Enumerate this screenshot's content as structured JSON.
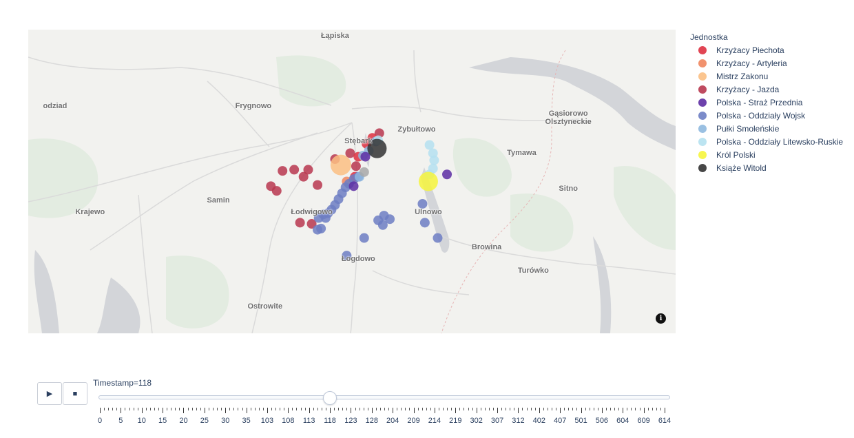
{
  "map": {
    "places": [
      {
        "name": "Łąpiska",
        "lon": 20.22,
        "lat": 53.72
      },
      {
        "name": "Gąsiorowo\nOlsztyneckie",
        "lon": 20.42,
        "lat": 53.65
      },
      {
        "name": "odziad",
        "lon": 19.98,
        "lat": 53.66
      },
      {
        "name": "Frygnowo",
        "lon": 20.15,
        "lat": 53.66
      },
      {
        "name": "Stębark",
        "lon": 20.24,
        "lat": 53.63
      },
      {
        "name": "Zybułtowo",
        "lon": 20.29,
        "lat": 53.64
      },
      {
        "name": "Tymawa",
        "lon": 20.38,
        "lat": 53.62
      },
      {
        "name": "Samin",
        "lon": 20.12,
        "lat": 53.58
      },
      {
        "name": "Krajewo",
        "lon": 20.01,
        "lat": 53.57
      },
      {
        "name": "Łodwigowo",
        "lon": 20.2,
        "lat": 53.57
      },
      {
        "name": "Ulnowo",
        "lon": 20.3,
        "lat": 53.57
      },
      {
        "name": "Sitno",
        "lon": 20.42,
        "lat": 53.59
      },
      {
        "name": "Łogdowo",
        "lon": 20.24,
        "lat": 53.53
      },
      {
        "name": "Browina",
        "lon": 20.35,
        "lat": 53.54
      },
      {
        "name": "Turówko",
        "lon": 20.39,
        "lat": 53.52
      },
      {
        "name": "Ostrowite",
        "lon": 20.16,
        "lat": 53.49
      }
    ],
    "info_icon": "info-icon"
  },
  "legend": {
    "title": "Jednostka",
    "items": [
      {
        "label": "Krzyżacy Piechota",
        "color": "#de3141"
      },
      {
        "label": "Krzyżacy - Artyleria",
        "color": "#f0865e"
      },
      {
        "label": "Mistrz Zakonu",
        "color": "#fbbf83"
      },
      {
        "label": "Krzyżacy - Jazda",
        "color": "#b8374f"
      },
      {
        "label": "Polska - Straż Przednia",
        "color": "#5d2ea3"
      },
      {
        "label": "Polska - Oddziały Wojsk",
        "color": "#6d7ec3"
      },
      {
        "label": "Pułki Smoleńskie",
        "color": "#8fb9df"
      },
      {
        "label": "Polska - Oddziały Litewsko-Ruskie",
        "color": "#b5e1f0"
      },
      {
        "label": "Król Polski",
        "color": "#f6f53c"
      },
      {
        "label": "Książe Witold",
        "color": "#333333"
      }
    ]
  },
  "units": [
    {
      "series": "Krzyżacy - Jazda",
      "lon": 20.175,
      "lat": 53.605
    },
    {
      "series": "Krzyżacy - Jazda",
      "lon": 20.185,
      "lat": 53.606
    },
    {
      "series": "Krzyżacy - Jazda",
      "lon": 20.197,
      "lat": 53.606
    },
    {
      "series": "Krzyżacy - Jazda",
      "lon": 20.193,
      "lat": 53.6
    },
    {
      "series": "Krzyżacy - Jazda",
      "lon": 20.165,
      "lat": 53.592
    },
    {
      "series": "Krzyżacy - Jazda",
      "lon": 20.17,
      "lat": 53.588
    },
    {
      "series": "Krzyżacy - Jazda",
      "lon": 20.205,
      "lat": 53.593
    },
    {
      "series": "Krzyżacy - Jazda",
      "lon": 20.233,
      "lat": 53.62
    },
    {
      "series": "Krzyżacy - Jazda",
      "lon": 20.22,
      "lat": 53.615
    },
    {
      "series": "Krzyżacy - Jazda",
      "lon": 20.19,
      "lat": 53.561
    },
    {
      "series": "Krzyżacy - Jazda",
      "lon": 20.2,
      "lat": 53.56
    },
    {
      "series": "Krzyżacy - Jazda",
      "lon": 20.238,
      "lat": 53.609
    },
    {
      "series": "Krzyżacy - Jazda",
      "lon": 20.258,
      "lat": 53.637
    },
    {
      "series": "Krzyżacy Piechota",
      "lon": 20.247,
      "lat": 53.628
    },
    {
      "series": "Krzyżacy Piechota",
      "lon": 20.252,
      "lat": 53.633
    },
    {
      "series": "Krzyżacy Piechota",
      "lon": 20.24,
      "lat": 53.617
    },
    {
      "series": "Krzyżacy Piechota",
      "lon": 20.237,
      "lat": 53.6
    },
    {
      "series": "Krzyżacy - Artyleria",
      "lon": 20.23,
      "lat": 53.596
    },
    {
      "series": "Mistrz Zakonu",
      "lon": 20.225,
      "lat": 53.61,
      "size": 30
    },
    {
      "series": "Polska - Oddziały Wojsk",
      "lon": 20.232,
      "lat": 53.594
    },
    {
      "series": "Polska - Oddziały Wojsk",
      "lon": 20.236,
      "lat": 53.598
    },
    {
      "series": "Polska - Oddziały Wojsk",
      "lon": 20.229,
      "lat": 53.591
    },
    {
      "series": "Polska - Oddziały Wojsk",
      "lon": 20.226,
      "lat": 53.586
    },
    {
      "series": "Polska - Oddziały Wojsk",
      "lon": 20.223,
      "lat": 53.581
    },
    {
      "series": "Polska - Oddziały Wojsk",
      "lon": 20.22,
      "lat": 53.576
    },
    {
      "series": "Polska - Oddziały Wojsk",
      "lon": 20.217,
      "lat": 53.572
    },
    {
      "series": "Polska - Oddziały Wojsk",
      "lon": 20.214,
      "lat": 53.569
    },
    {
      "series": "Polska - Oddziały Wojsk",
      "lon": 20.21,
      "lat": 53.568
    },
    {
      "series": "Polska - Oddziały Wojsk",
      "lon": 20.206,
      "lat": 53.565
    },
    {
      "series": "Polska - Oddziały Wojsk",
      "lon": 20.212,
      "lat": 53.565
    },
    {
      "series": "Polska - Oddziały Wojsk",
      "lon": 20.208,
      "lat": 53.556
    },
    {
      "series": "Polska - Oddziały Wojsk",
      "lon": 20.205,
      "lat": 53.555
    },
    {
      "series": "Polska - Oddziały Wojsk",
      "lon": 20.24,
      "lat": 53.6
    },
    {
      "series": "Polska - Oddziały Wojsk",
      "lon": 20.262,
      "lat": 53.567
    },
    {
      "series": "Polska - Oddziały Wojsk",
      "lon": 20.267,
      "lat": 53.564
    },
    {
      "series": "Polska - Oddziały Wojsk",
      "lon": 20.257,
      "lat": 53.563
    },
    {
      "series": "Polska - Oddziały Wojsk",
      "lon": 20.261,
      "lat": 53.559
    },
    {
      "series": "Polska - Oddziały Wojsk",
      "lon": 20.245,
      "lat": 53.548
    },
    {
      "series": "Polska - Oddziały Wojsk",
      "lon": 20.23,
      "lat": 53.533
    },
    {
      "series": "Polska - Oddziały Wojsk",
      "lon": 20.295,
      "lat": 53.577
    },
    {
      "series": "Polska - Oddziały Wojsk",
      "lon": 20.297,
      "lat": 53.561
    },
    {
      "series": "Polska - Oddziały Wojsk",
      "lon": 20.308,
      "lat": 53.548
    },
    {
      "series": "Pułki Smoleńskie",
      "lon": 20.255,
      "lat": 53.63
    },
    {
      "series": "Pułki Smoleńskie",
      "lon": 20.244,
      "lat": 53.618
    },
    {
      "series": "Pułki Smoleńskie",
      "lon": 20.249,
      "lat": 53.622
    },
    {
      "series": "Pułki Smoleńskie",
      "lon": 20.241,
      "lat": 53.6
    },
    {
      "series": "Polska - Oddziały Litewsko-Ruskie",
      "lon": 20.301,
      "lat": 53.627
    },
    {
      "series": "Polska - Oddziały Litewsko-Ruskie",
      "lon": 20.304,
      "lat": 53.62
    },
    {
      "series": "Polska - Oddziały Litewsko-Ruskie",
      "lon": 20.305,
      "lat": 53.614
    },
    {
      "series": "Polska - Oddziały Litewsko-Ruskie",
      "lon": 20.304,
      "lat": 53.607
    },
    {
      "series": "Polska - Oddziały Litewsko-Ruskie",
      "lon": 20.301,
      "lat": 53.602
    },
    {
      "series": "Polska - Oddziały Litewsko-Ruskie",
      "lon": 20.257,
      "lat": 53.631
    },
    {
      "series": "Polska - Straż Przednia",
      "lon": 20.316,
      "lat": 53.602
    },
    {
      "series": "Polska - Straż Przednia",
      "lon": 20.246,
      "lat": 53.617
    },
    {
      "series": "Polska - Straż Przednia",
      "lon": 20.236,
      "lat": 53.592
    },
    {
      "series": "Król Polski",
      "lon": 20.3,
      "lat": 53.596,
      "size": 28
    },
    {
      "series": "Książe Witold",
      "lon": 20.256,
      "lat": 53.624,
      "size": 28
    },
    {
      "series": "Książe Witold",
      "lon": 20.245,
      "lat": 53.604,
      "size": 14,
      "color": "#a8a8a8"
    }
  ],
  "slider": {
    "label": "Timestamp=118",
    "current": "118",
    "ticks": [
      "0",
      "5",
      "10",
      "15",
      "20",
      "25",
      "30",
      "35",
      "103",
      "108",
      "113",
      "118",
      "123",
      "128",
      "204",
      "209",
      "214",
      "219",
      "302",
      "307",
      "312",
      "402",
      "407",
      "501",
      "506",
      "604",
      "609",
      "614"
    ]
  },
  "controls": {
    "play_label": "▶",
    "stop_label": "■"
  }
}
